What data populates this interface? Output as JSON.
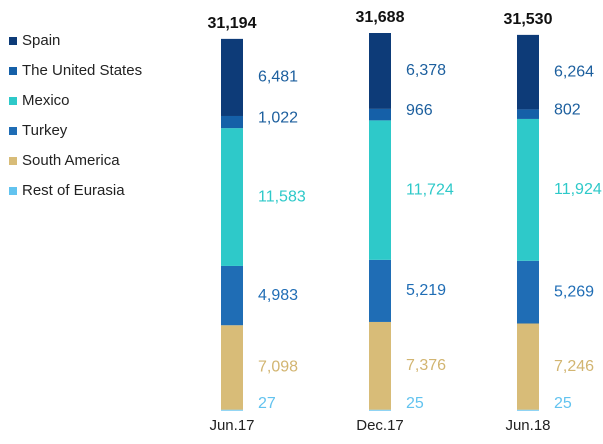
{
  "chart_data": {
    "type": "stacked-bar",
    "categories": [
      "Jun.17",
      "Dec.17",
      "Jun.18"
    ],
    "totals": [
      31194,
      31688,
      31530
    ],
    "total_labels": [
      "31,194",
      "31,688",
      "31,530"
    ],
    "series": [
      {
        "name": "Rest of Eurasia",
        "color": "#62c3ef",
        "label_color": "#62c3ef",
        "values": [
          27,
          25,
          25
        ],
        "value_labels": [
          "27",
          "25",
          "25"
        ]
      },
      {
        "name": "South America",
        "color": "#d8bc78",
        "label_color": "#d2b571",
        "values": [
          7098,
          7376,
          7246
        ],
        "value_labels": [
          "7,098",
          "7,376",
          "7,246"
        ]
      },
      {
        "name": "Turkey",
        "color": "#1f6db5",
        "label_color": "#1f6db5",
        "values": [
          4983,
          5219,
          5269
        ],
        "value_labels": [
          "4,983",
          "5,219",
          "5,269"
        ]
      },
      {
        "name": "Mexico",
        "color": "#2ec9c9",
        "label_color": "#2ec9c9",
        "values": [
          11583,
          11724,
          11924
        ],
        "value_labels": [
          "11,583",
          "11,724",
          "11,924"
        ]
      },
      {
        "name": "The United States",
        "color": "#1560a8",
        "label_color": "#1c5f9e",
        "values": [
          1022,
          966,
          802
        ],
        "value_labels": [
          "1,022",
          "966",
          "802"
        ]
      },
      {
        "name": "Spain",
        "color": "#0d3b78",
        "label_color": "#1c5f9e",
        "values": [
          6481,
          6378,
          6264
        ],
        "value_labels": [
          "6,481",
          "6,378",
          "6,264"
        ]
      }
    ],
    "legend_order": [
      5,
      4,
      3,
      2,
      1,
      0
    ]
  }
}
